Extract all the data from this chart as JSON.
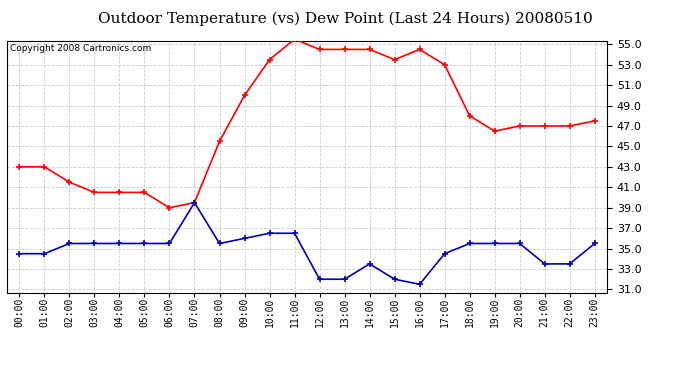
{
  "title": "Outdoor Temperature (vs) Dew Point (Last 24 Hours) 20080510",
  "copyright_text": "Copyright 2008 Cartronics.com",
  "hours": [
    "00:00",
    "01:00",
    "02:00",
    "03:00",
    "04:00",
    "05:00",
    "06:00",
    "07:00",
    "08:00",
    "09:00",
    "10:00",
    "11:00",
    "12:00",
    "13:00",
    "14:00",
    "15:00",
    "16:00",
    "17:00",
    "18:00",
    "19:00",
    "20:00",
    "21:00",
    "22:00",
    "23:00"
  ],
  "temp_red": [
    43.0,
    43.0,
    41.5,
    40.5,
    40.5,
    40.5,
    39.0,
    39.5,
    45.5,
    50.0,
    53.5,
    55.5,
    54.5,
    54.5,
    54.5,
    53.5,
    54.5,
    53.0,
    48.0,
    46.5,
    47.0,
    47.0,
    47.0,
    47.5
  ],
  "dew_blue": [
    34.5,
    34.5,
    35.5,
    35.5,
    35.5,
    35.5,
    35.5,
    39.5,
    35.5,
    36.0,
    36.5,
    36.5,
    32.0,
    32.0,
    33.5,
    32.0,
    31.5,
    34.5,
    35.5,
    35.5,
    35.5,
    33.5,
    33.5,
    35.5
  ],
  "ylim": [
    31.0,
    55.0
  ],
  "yticks": [
    31.0,
    33.0,
    35.0,
    37.0,
    39.0,
    41.0,
    43.0,
    45.0,
    47.0,
    49.0,
    51.0,
    53.0,
    55.0
  ],
  "red_color": "#ff0000",
  "blue_color": "#0000bb",
  "grid_color": "#cccccc",
  "bg_color": "#ffffff",
  "title_fontsize": 11,
  "copyright_fontsize": 6.5,
  "tick_fontsize": 8,
  "xtick_fontsize": 7
}
